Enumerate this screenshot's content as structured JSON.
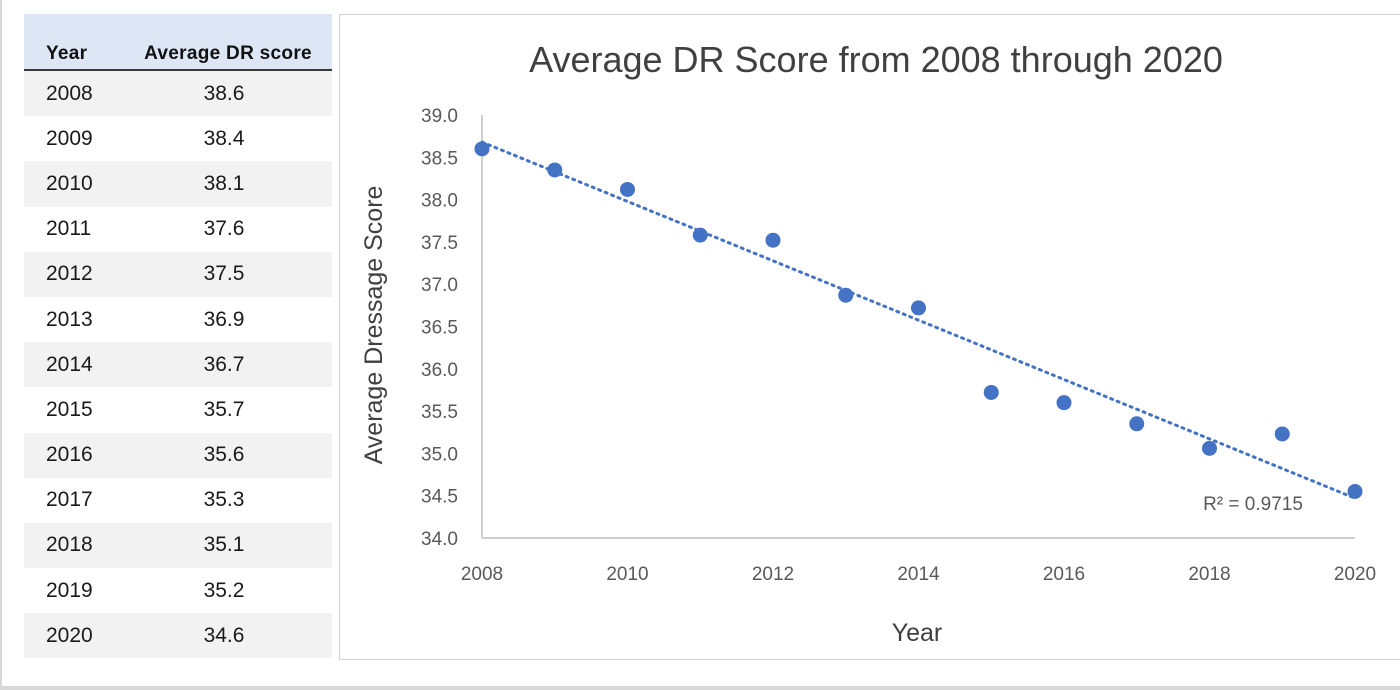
{
  "table": {
    "headers": {
      "year": "Year",
      "score": "Average DR score"
    },
    "rows": [
      {
        "year": "2008",
        "score": "38.6"
      },
      {
        "year": "2009",
        "score": "38.4"
      },
      {
        "year": "2010",
        "score": "38.1"
      },
      {
        "year": "2011",
        "score": "37.6"
      },
      {
        "year": "2012",
        "score": "37.5"
      },
      {
        "year": "2013",
        "score": "36.9"
      },
      {
        "year": "2014",
        "score": "36.7"
      },
      {
        "year": "2015",
        "score": "35.7"
      },
      {
        "year": "2016",
        "score": "35.6"
      },
      {
        "year": "2017",
        "score": "35.3"
      },
      {
        "year": "2018",
        "score": "35.1"
      },
      {
        "year": "2019",
        "score": "35.2"
      },
      {
        "year": "2020",
        "score": "34.6"
      }
    ],
    "header_bg": "#dce6f5",
    "stripe_bg": "#f2f2f2"
  },
  "chart_data": {
    "type": "scatter",
    "title": "Average DR Score from 2008 through 2020",
    "xlabel": "Year",
    "ylabel": "Average Dressage Score",
    "xlim": [
      2008,
      2020
    ],
    "ylim": [
      34.0,
      39.0
    ],
    "x_ticks": [
      "2008",
      "2010",
      "2012",
      "2014",
      "2016",
      "2018",
      "2020"
    ],
    "y_ticks": [
      "34.0",
      "34.5",
      "35.0",
      "35.5",
      "36.0",
      "36.5",
      "37.0",
      "37.5",
      "38.0",
      "38.5",
      "39.0"
    ],
    "grid": false,
    "legend": "none",
    "series": [
      {
        "x": [
          2008,
          2009,
          2010,
          2011,
          2012,
          2013,
          2014,
          2015,
          2016,
          2017,
          2018,
          2019,
          2020
        ],
        "y": [
          38.6,
          38.35,
          38.12,
          37.58,
          37.52,
          36.87,
          36.72,
          35.72,
          35.6,
          35.35,
          35.06,
          35.23,
          34.55
        ],
        "color": "#4472c4"
      }
    ],
    "trendline": {
      "type": "linear",
      "from": [
        2008,
        38.68
      ],
      "to": [
        2020,
        34.47
      ],
      "color": "#4472c4",
      "style": "dotted",
      "r_squared_label": "R² = 0.9715"
    }
  }
}
